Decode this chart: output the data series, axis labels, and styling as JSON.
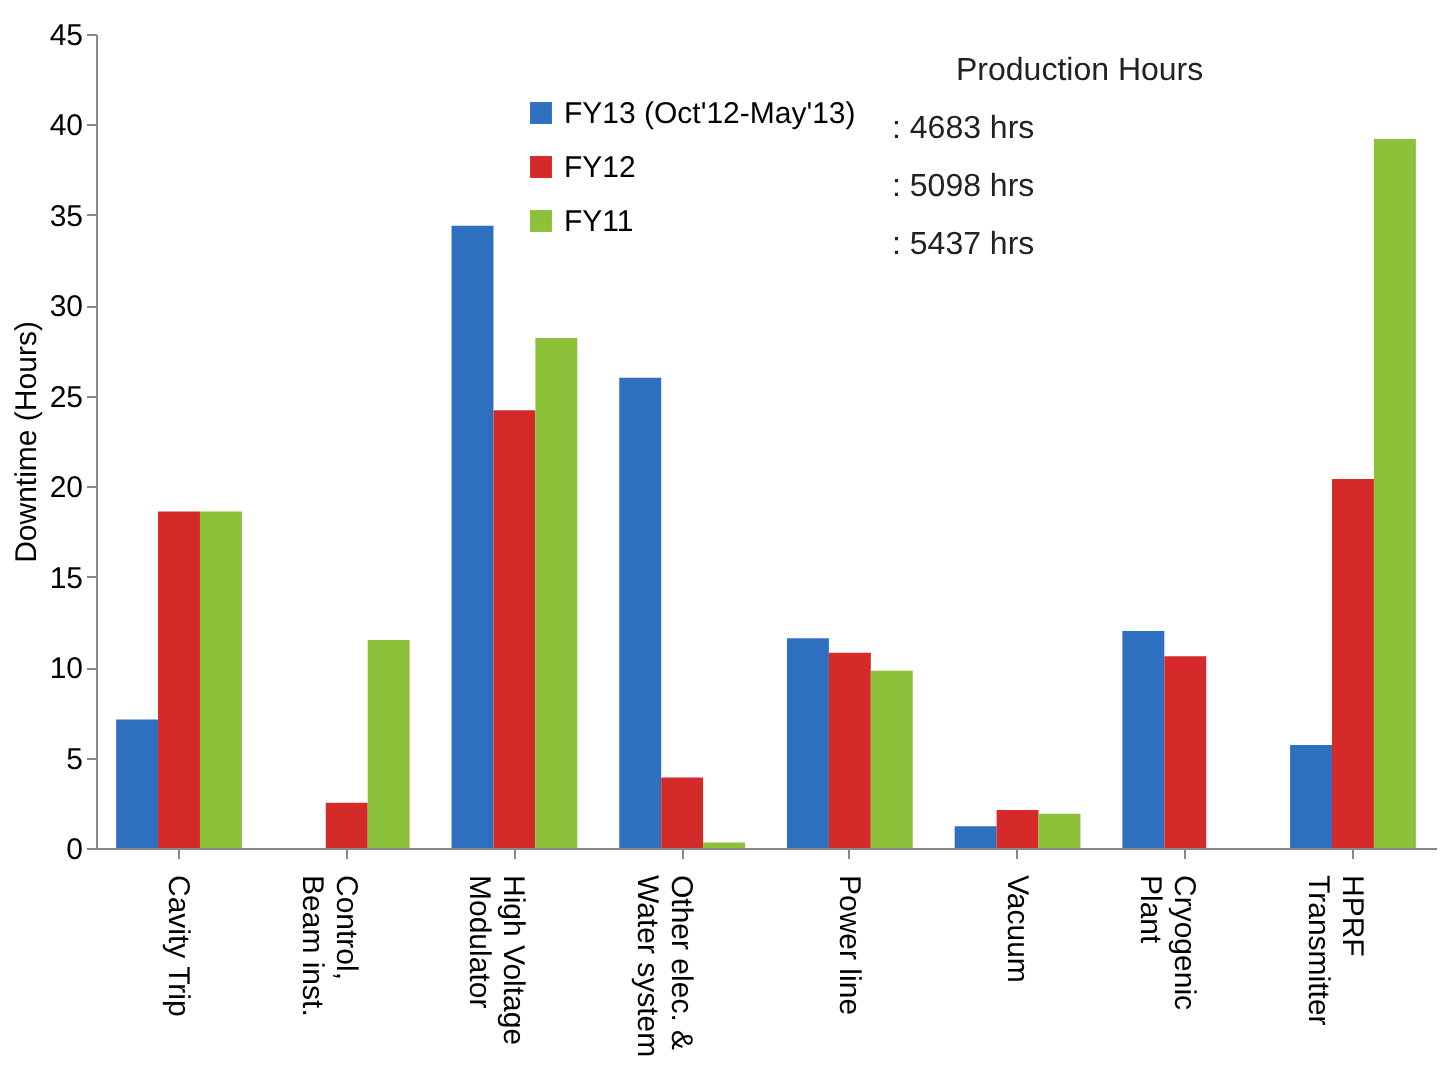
{
  "chart_data": {
    "type": "bar",
    "ylabel": "Downtime (Hours)",
    "categories": [
      "Cavity Trip",
      "Control,\nBeam inst.",
      "High Voltage\nModulator",
      "Other elec. &\nWater system",
      "Power line",
      "Vacuum",
      "Cryogenic\nPlant",
      "HPRF\nTransmitter"
    ],
    "series": [
      {
        "name": "FY13 (Oct'12-May'13)",
        "color": "#2f6fc0",
        "values": [
          7.1,
          0,
          34.4,
          26.0,
          11.6,
          1.2,
          12.0,
          5.7
        ]
      },
      {
        "name": "FY12",
        "color": "#d42a2a",
        "values": [
          18.6,
          2.5,
          24.2,
          3.9,
          10.8,
          2.1,
          10.6,
          20.4
        ]
      },
      {
        "name": "FY11",
        "color": "#8ec13a",
        "values": [
          18.6,
          11.5,
          28.2,
          0.3,
          9.8,
          1.9,
          null,
          39.2
        ]
      }
    ],
    "ylim": [
      0,
      45
    ],
    "yticks": [
      0,
      5,
      10,
      15,
      20,
      25,
      30,
      35,
      40,
      45
    ],
    "grid": false,
    "legend": "top",
    "annotations": [
      "Production Hours",
      ": 4683 hrs",
      ": 5098 hrs",
      ": 5437 hrs"
    ]
  }
}
